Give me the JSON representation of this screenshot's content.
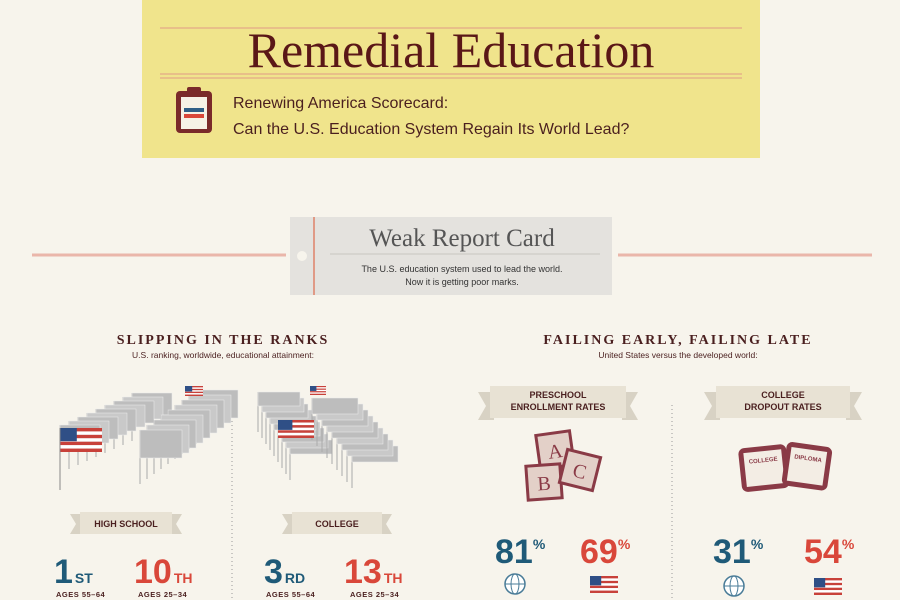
{
  "header": {
    "title": "Remedial Education",
    "subtitle": [
      "Renewing America Scorecard:",
      "Can the U.S. Education System Regain Its World Lead?"
    ]
  },
  "card": {
    "title": "Weak Report Card",
    "text": [
      "The U.S. education system used to lead the world.",
      "Now it is getting poor marks."
    ]
  },
  "left": {
    "heading": "SLIPPING IN THE RANKS",
    "subheading": "U.S. ranking, worldwide, educational attainment:",
    "groups": [
      {
        "label": "HIGH SCHOOL",
        "ranks": [
          {
            "rank": 1,
            "suffix": "ST",
            "ages": "AGES 55–64"
          },
          {
            "rank": 10,
            "suffix": "TH",
            "ages": "AGES 25–34"
          }
        ]
      },
      {
        "label": "COLLEGE",
        "ranks": [
          {
            "rank": 3,
            "suffix": "RD",
            "ages": "AGES 55–64"
          },
          {
            "rank": 13,
            "suffix": "TH",
            "ages": "AGES 25–34"
          }
        ]
      }
    ]
  },
  "right": {
    "heading": "FAILING EARLY, FAILING LATE",
    "subheading": "United States versus the developed world:",
    "groups": [
      {
        "label": [
          "PRESCHOOL",
          "ENROLLMENT RATES"
        ],
        "stats": [
          {
            "value": 81,
            "unit": "%"
          },
          {
            "value": 69,
            "unit": "%"
          }
        ]
      },
      {
        "label": [
          "COLLEGE",
          "DROPOUT RATES"
        ],
        "stats": [
          {
            "value": 31,
            "unit": "%"
          },
          {
            "value": 54,
            "unit": "%"
          }
        ]
      }
    ],
    "blocks": [
      "A",
      "B",
      "C"
    ],
    "diploma": [
      "COLLEGE",
      "DIPLOMA"
    ]
  }
}
